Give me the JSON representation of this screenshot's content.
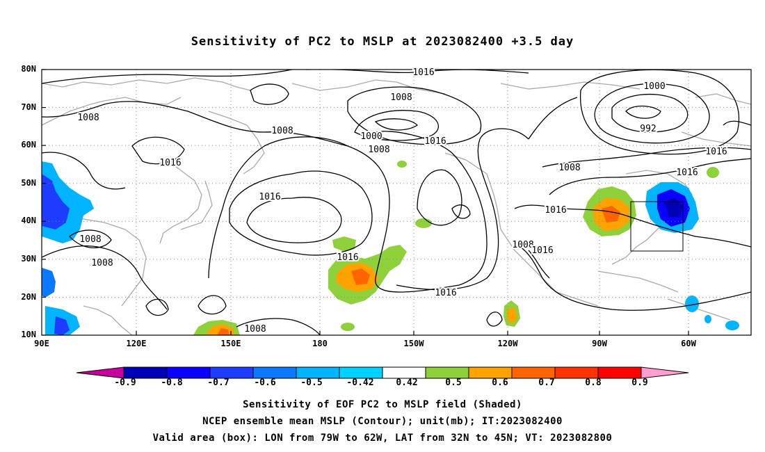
{
  "title": "Sensitivity of PC2 to MSLP at 2023082400 +3.5 day",
  "map": {
    "lat_labels": [
      "80N",
      "70N",
      "60N",
      "50N",
      "40N",
      "30N",
      "20N",
      "10N"
    ],
    "lon_labels": [
      "90E",
      "120E",
      "150E",
      "180",
      "150W",
      "120W",
      "90W",
      "60W"
    ],
    "contour_labels": [
      {
        "text": "1016"
      },
      {
        "text": "1008"
      },
      {
        "text": "1008"
      },
      {
        "text": "1000"
      },
      {
        "text": "1008"
      },
      {
        "text": "1016"
      },
      {
        "text": "1008"
      },
      {
        "text": "1016"
      },
      {
        "text": "1000"
      },
      {
        "text": "992"
      },
      {
        "text": "1016"
      },
      {
        "text": "1008"
      },
      {
        "text": "1016"
      },
      {
        "text": "1016"
      },
      {
        "text": "1016"
      },
      {
        "text": "1008"
      },
      {
        "text": "1008"
      },
      {
        "text": "1016"
      },
      {
        "text": "1008"
      },
      {
        "text": "1016"
      },
      {
        "text": "1016"
      },
      {
        "text": "1008"
      }
    ],
    "valid_box": {
      "lon_from": "79W",
      "lon_to": "62W",
      "lat_from": "32N",
      "lat_to": "45N"
    }
  },
  "colorbar": {
    "labels": [
      "-0.9",
      "-0.8",
      "-0.7",
      "-0.6",
      "-0.5",
      "-0.42",
      "0.42",
      "0.5",
      "0.6",
      "0.7",
      "0.8",
      "0.9"
    ],
    "colors": [
      "#0000b4",
      "#0a00ff",
      "#1e3cff",
      "#0a78ff",
      "#00b4ff",
      "#00d2ff",
      "#ffffff",
      "#8fd13a",
      "#ffa200",
      "#ff6400",
      "#ff3200",
      "#ff0000"
    ],
    "low_end_color": "#c8009b",
    "high_end_color": "#ff9fcf"
  },
  "footer": {
    "line1": "Sensitivity of EOF PC2 to MSLP field (Shaded)",
    "line2": "NCEP ensemble mean MSLP (Contour); unit(mb); IT:2023082400",
    "line3": "Valid area (box): LON from 79W to 62W, LAT from 32N to 45N; VT: 2023082800"
  }
}
